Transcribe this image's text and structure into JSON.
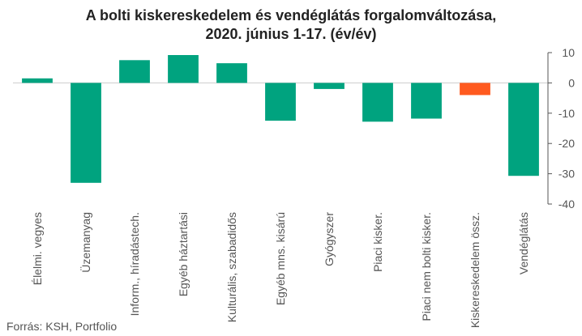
{
  "chart_data": {
    "type": "bar",
    "title_line1": "A bolti kiskereskedelem és vendéglátás forgalomváltozása,",
    "title_line2": "2020. június 1-17. (év/év)",
    "categories": [
      "Élelmi. vegyes",
      "Üzemanyag",
      "Inform., híradástech.",
      "Egyéb háztartási",
      "Kulturális, szabadidős",
      "Egyéb mns. kisárú",
      "Gyógyszer",
      "Piaci kisker.",
      "Piaci nem bolti kisker.",
      "Kiskereskedelem össz.",
      "Vendéglátás"
    ],
    "values": [
      1.5,
      -33,
      7.5,
      9.2,
      6.5,
      -12.5,
      -2,
      -12.8,
      -11.8,
      -4,
      -30.7
    ],
    "ylim": [
      -40,
      10
    ],
    "yticks": [
      10,
      0,
      -10,
      -20,
      -30,
      -40
    ],
    "grid": false,
    "legend": "none",
    "colors": {
      "default": "#00a37f",
      "highlight": "#ff5a1f",
      "highlight_index": 9
    }
  },
  "source": "Forrás: KSH, Portfolio"
}
